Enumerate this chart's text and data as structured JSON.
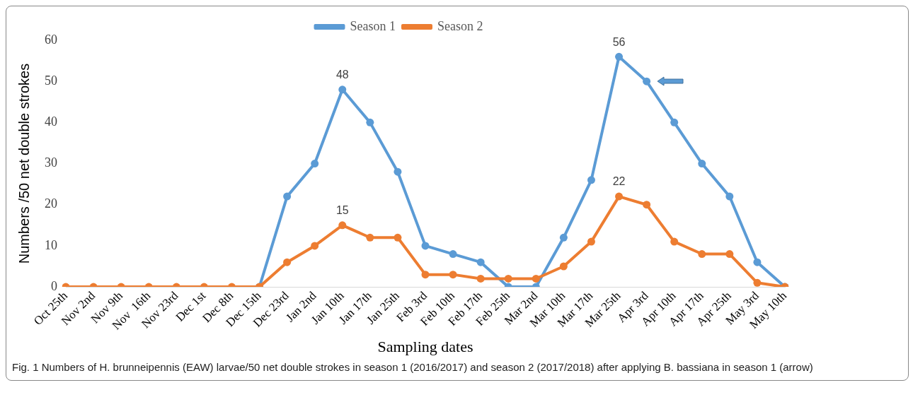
{
  "chart_data": {
    "type": "line",
    "xlabel": "Sampling dates",
    "ylabel": "Numbers /50 net double strokes",
    "categories": [
      "Oct 25th",
      "Nov 2nd",
      "Nov 9th",
      "Nov  16th",
      "Nov 23rd",
      "Dec 1st",
      "Dec 8th",
      "Dec 15th",
      "Dec 23rd",
      "Jan 2nd",
      "Jan 10th",
      "Jan 17th",
      "Jan 25th",
      "Feb 3rd",
      "Feb 10th",
      "Feb 17th",
      "Feb 25th",
      "Mar 2nd",
      "Mar 10th",
      "Mar 17th",
      "Mar 25th",
      "Apr 3rd",
      "Apr 10th",
      "Apr 17th",
      "Apr 25th",
      "May 3rd",
      "May 10th"
    ],
    "series": [
      {
        "name": "Season 1",
        "color": "#5b9bd5",
        "values": [
          null,
          null,
          null,
          null,
          null,
          null,
          null,
          0,
          22,
          30,
          48,
          40,
          28,
          10,
          8,
          6,
          0,
          0,
          12,
          26,
          56,
          50,
          40,
          30,
          22,
          6,
          0
        ],
        "value_labels": [
          null,
          null,
          null,
          null,
          null,
          null,
          null,
          null,
          null,
          null,
          "48",
          null,
          null,
          null,
          null,
          null,
          null,
          null,
          null,
          null,
          "56",
          null,
          null,
          null,
          null,
          null,
          null
        ]
      },
      {
        "name": "Season 2",
        "color": "#ed7d31",
        "values": [
          0,
          0,
          0,
          0,
          0,
          0,
          0,
          0,
          6,
          10,
          15,
          12,
          12,
          3,
          3,
          2,
          2,
          2,
          5,
          11,
          22,
          20,
          11,
          8,
          8,
          1,
          0
        ],
        "value_labels": [
          null,
          null,
          null,
          null,
          null,
          null,
          null,
          null,
          null,
          null,
          "15",
          null,
          null,
          null,
          null,
          null,
          null,
          null,
          null,
          null,
          "22",
          null,
          null,
          null,
          null,
          null,
          null
        ]
      }
    ],
    "ylim": [
      0,
      60
    ],
    "yticks": [
      0,
      10,
      20,
      30,
      40,
      50,
      60
    ],
    "grid": false,
    "legend": "top",
    "marker": "circle",
    "line_style": "solid",
    "annotations": [
      "Fig. 1 Numbers of H. brunneipennis (EAW) larvae/50 net double strokes in season 1 (2016/2017) and season 2 (2017/2018) after applying B. bassiana in season 1 (arrow)"
    ]
  }
}
